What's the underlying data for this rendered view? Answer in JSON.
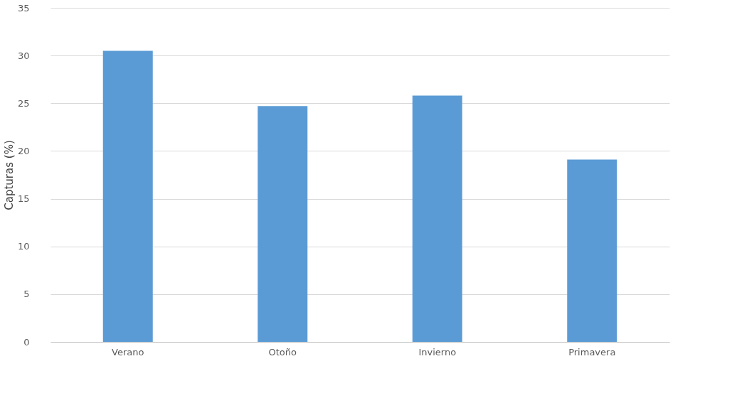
{
  "chart_data": {
    "type": "bar",
    "ylabel": "Capturas (%)",
    "categories": [
      "Verano",
      "Otoño",
      "Invierno",
      "Primavera"
    ],
    "values": [
      30.5,
      24.7,
      25.8,
      19.1
    ],
    "color": "#5b9bd5",
    "ylim": [
      0,
      35
    ],
    "yticks": [
      0,
      5,
      10,
      15,
      20,
      25,
      30,
      35
    ],
    "grid": "y"
  }
}
